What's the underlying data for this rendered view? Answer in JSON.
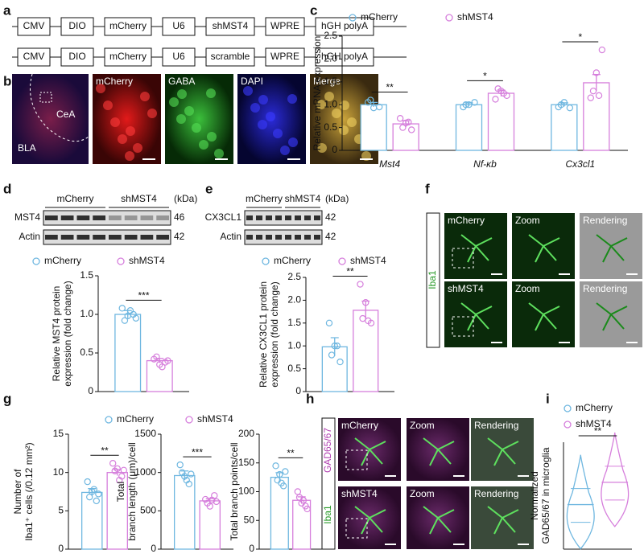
{
  "panel_letters": [
    "a",
    "b",
    "c",
    "d",
    "e",
    "f",
    "g",
    "h",
    "i"
  ],
  "construct": {
    "rows": [
      [
        "CMV",
        "DIO",
        "mCherry",
        "U6",
        "shMST4",
        "WPRE",
        "hGH polyA"
      ],
      [
        "CMV",
        "DIO",
        "mCherry",
        "U6",
        "scramble",
        "WPRE",
        "hGH polyA"
      ]
    ]
  },
  "panel_b": {
    "labels": [
      "mCherry",
      "GABA",
      "DAPI",
      "Merge"
    ],
    "regions": [
      "BLA",
      "CeA"
    ]
  },
  "panel_d_blot": {
    "groups": [
      "mCherry",
      "shMST4"
    ],
    "unit": "(kDa)",
    "rows": [
      {
        "name": "MST4",
        "kda": "46"
      },
      {
        "name": "Actin",
        "kda": "42"
      }
    ]
  },
  "panel_e_blot": {
    "groups": [
      "mCherry",
      "shMST4"
    ],
    "unit": "(kDa)",
    "rows": [
      {
        "name": "CX3CL1",
        "kda": "42"
      },
      {
        "name": "Actin",
        "kda": "42"
      }
    ]
  },
  "panel_f": {
    "stain": "Iba1",
    "rows": [
      "mCherry",
      "shMST4"
    ],
    "columns": [
      "Zoom",
      "Rendering"
    ]
  },
  "panel_h": {
    "stains": [
      "Iba1",
      "GAD65/67"
    ],
    "rows": [
      "mCherry",
      "shMST4"
    ],
    "columns": [
      "Zoom",
      "Rendering"
    ]
  },
  "chart_data": [
    {
      "type": "bar",
      "ylabel": [
        "Relative mRNA expression"
      ],
      "categories": [
        "Mst4",
        "Nf-κb",
        "Cx3cl1"
      ],
      "series": [
        {
          "name": "mCherry",
          "color": "#6fb7e0",
          "values": [
            1.0,
            1.0,
            1.0
          ],
          "errors": [
            0.05,
            0.04,
            0.04
          ],
          "points": [
            [
              1.05,
              0.93,
              0.95,
              1.1
            ],
            [
              0.95,
              1.0,
              1.05,
              1.0
            ],
            [
              0.95,
              1.05,
              0.93,
              1.0
            ]
          ]
        },
        {
          "name": "shMST4",
          "color": "#d67fdc",
          "values": [
            0.58,
            1.25,
            1.48
          ],
          "errors": [
            0.07,
            0.07,
            0.18
          ],
          "points": [
            [
              0.7,
              0.6,
              0.45,
              0.5,
              0.62
            ],
            [
              1.12,
              1.3,
              1.2,
              1.35,
              1.25
            ],
            [
              1.15,
              1.7,
              2.2,
              1.3,
              1.2
            ]
          ]
        }
      ],
      "ylim": [
        0,
        2.5
      ],
      "yticks": [
        0,
        0.5,
        {
          "value": 1,
          "label": "1.0"
        },
        1.5,
        {
          "value": 2,
          "label": "2.0"
        },
        2.5
      ],
      "significance": [
        "**",
        "*",
        "*"
      ]
    },
    {
      "type": "bar",
      "ylabel": [
        "Relative MST4 protein",
        "expression (fold change)"
      ],
      "series": [
        {
          "name": "mCherry",
          "color": "#6fb7e0",
          "values": [
            1.0
          ],
          "errors": [
            0.05
          ],
          "points": [
            [
              1.08,
              0.98,
              1.0,
              0.92,
              1.05,
              0.95
            ]
          ]
        },
        {
          "name": "shMST4",
          "color": "#d67fdc",
          "values": [
            0.4
          ],
          "errors": [
            0.03
          ],
          "points": [
            [
              0.42,
              0.35,
              0.38,
              0.45,
              0.32,
              0.4
            ]
          ]
        }
      ],
      "ylim": [
        0,
        1.5
      ],
      "yticks": [
        0,
        0.5,
        {
          "value": 1,
          "label": "1.0"
        },
        1.5
      ],
      "significance": [
        "***"
      ]
    },
    {
      "type": "bar",
      "ylabel": [
        "Relative CX3CL1 protein",
        "expression (fold change)"
      ],
      "series": [
        {
          "name": "mCherry",
          "color": "#6fb7e0",
          "values": [
            0.98
          ],
          "errors": [
            0.2
          ],
          "points": [
            [
              1.5,
              1.0,
              0.65,
              0.8,
              1.0
            ]
          ]
        },
        {
          "name": "shMST4",
          "color": "#d67fdc",
          "values": [
            1.78
          ],
          "errors": [
            0.2
          ],
          "points": [
            [
              2.35,
              1.95,
              1.5,
              1.6,
              1.55
            ]
          ]
        }
      ],
      "ylim": [
        0,
        2.5
      ],
      "yticks": [
        0,
        0.5,
        {
          "value": 1,
          "label": "1.0"
        },
        1.5,
        {
          "value": 2,
          "label": "2.0"
        },
        2.5
      ],
      "significance": [
        "**"
      ]
    },
    {
      "type": "bar",
      "ylabel": [
        "Number of",
        "Iba1⁺ cells (/0.12 mm²)"
      ],
      "series": [
        {
          "name": "mCherry",
          "color": "#6fb7e0",
          "values": [
            7.4
          ],
          "errors": [
            0.5
          ],
          "points": [
            [
              8.8,
              7.5,
              6.3,
              6.8,
              7.8,
              7.2
            ]
          ]
        },
        {
          "name": "shMST4",
          "color": "#d67fdc",
          "values": [
            10.0
          ],
          "errors": [
            0.4
          ],
          "points": [
            [
              11.2,
              10.5,
              9.5,
              10.2,
              9.0,
              10.3
            ]
          ]
        }
      ],
      "ylim": [
        0,
        15
      ],
      "yticks": [
        0,
        5,
        10,
        15
      ],
      "significance": [
        "**"
      ]
    },
    {
      "type": "bar",
      "ylabel": [
        "Total",
        "branch length (μm)/cell"
      ],
      "series": [
        {
          "color": "#6fb7e0",
          "values": [
            960
          ],
          "errors": [
            60
          ],
          "points": [
            [
              1100,
              950,
              850,
              1000,
              900,
              980
            ]
          ]
        },
        {
          "color": "#d67fdc",
          "values": [
            630
          ],
          "errors": [
            30
          ],
          "points": [
            [
              650,
              560,
              700,
              600,
              640,
              620
            ]
          ]
        }
      ],
      "ylim": [
        0,
        1500
      ],
      "yticks": [
        0,
        500,
        1000,
        1500
      ],
      "significance": [
        "***"
      ]
    },
    {
      "type": "bar",
      "ylabel": [
        "Total branch points/cell"
      ],
      "series": [
        {
          "color": "#6fb7e0",
          "values": [
            125
          ],
          "errors": [
            8
          ],
          "points": [
            [
              145,
              130,
              110,
              120,
              115,
              135
            ]
          ]
        },
        {
          "color": "#d67fdc",
          "values": [
            85
          ],
          "errors": [
            6
          ],
          "points": [
            [
              100,
              80,
              75,
              90,
              85,
              70
            ]
          ]
        }
      ],
      "ylim": [
        0,
        200
      ],
      "yticks": [
        0,
        50,
        100,
        150,
        200
      ],
      "significance": [
        "**"
      ]
    },
    {
      "type": "violin",
      "ylabel": [
        "Normalized",
        "GAD65/67 in microglia"
      ],
      "series": [
        {
          "name": "mCherry",
          "color": "#6fb7e0",
          "values": [
            1.0
          ]
        },
        {
          "name": "shMST4",
          "color": "#d67fdc",
          "values": [
            1.5
          ]
        }
      ],
      "ylim": [
        0,
        2.4
      ],
      "significance": [
        "**"
      ]
    }
  ]
}
